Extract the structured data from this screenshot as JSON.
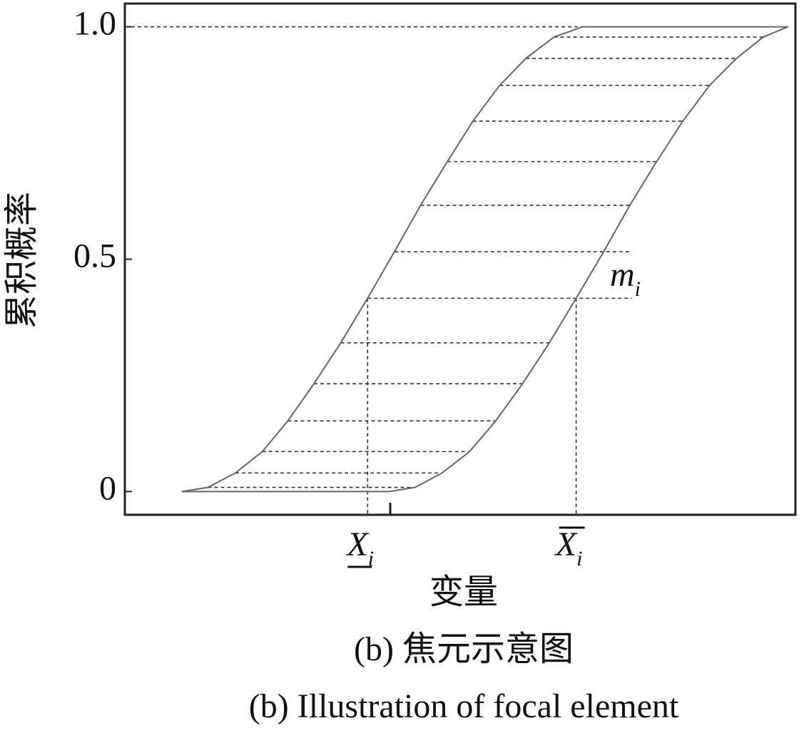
{
  "chart_data": {
    "type": "line",
    "xlabel": "变量",
    "ylabel": "累积概率",
    "captions": [
      "(b)  焦元示意图",
      "(b)  Illustration of focal element"
    ],
    "xlim": [
      0,
      100
    ],
    "ylim": [
      -0.05,
      1.05
    ],
    "yticks": [
      0,
      0.5,
      {
        "value": 1,
        "label": "1.0"
      }
    ],
    "xticks": [
      {
        "value": 36.2,
        "label": "X",
        "sub": "i",
        "bar": "under"
      },
      {
        "value": 67.3,
        "label": "X",
        "sub": "i",
        "bar": "over"
      }
    ],
    "annotation": {
      "text": "m",
      "sub": "i"
    },
    "series": [
      {
        "color": "#666666",
        "x": [
          8.5,
          12.4,
          16.5,
          20.5,
          24.3,
          28.2,
          32.2,
          36.2,
          40.2,
          44.1,
          48.1,
          51.9,
          55.9,
          59.8,
          64.0,
          68.3,
          98.9
        ],
        "values": [
          0,
          0.009,
          0.04,
          0.086,
          0.152,
          0.232,
          0.32,
          0.416,
          0.516,
          0.616,
          0.71,
          0.797,
          0.874,
          0.932,
          0.978,
          1,
          1
        ]
      },
      {
        "color": "#666666",
        "x": [
          8.5,
          39.4,
          43.3,
          47.3,
          51.4,
          55.3,
          59.3,
          63.3,
          67.3,
          71.4,
          75.3,
          79.3,
          83.2,
          87.2,
          91.2,
          95.2,
          98.9
        ],
        "values": [
          0,
          0,
          0.009,
          0.04,
          0.086,
          0.152,
          0.232,
          0.32,
          0.416,
          0.516,
          0.616,
          0.71,
          0.797,
          0.874,
          0.932,
          0.978,
          1
        ]
      }
    ]
  }
}
